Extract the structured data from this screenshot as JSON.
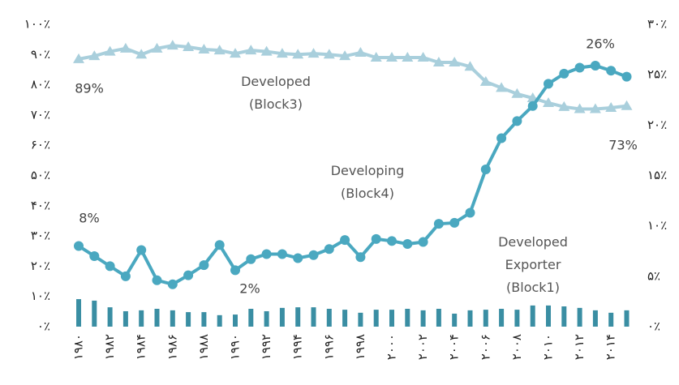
{
  "chart_data": {
    "type": "line",
    "categories": [
      "۱۹۸۰",
      null,
      "۱۹۸۲",
      null,
      "۱۹۸۴",
      null,
      "۱۹۸۶",
      null,
      "۱۹۸۸",
      null,
      "۱۹۹۰",
      null,
      "۱۹۹۲",
      null,
      "۱۹۹۴",
      null,
      "۱۹۹۶",
      null,
      "۱۹۹۸",
      null,
      "۲۰۰۰",
      null,
      "۲۰۰۲",
      null,
      "۲۰۰۴",
      null,
      "۲۰۰۶",
      null,
      "۲۰۰۸",
      null,
      "۲۰۱۰",
      null,
      "۲۰۱۲",
      null,
      "۲۰۱۴",
      null
    ],
    "series": [
      {
        "name": "Developed (Block3)",
        "color": "#a9cfdc",
        "marker": "triangle",
        "values": [
          88.5,
          89.5,
          91,
          92,
          90,
          92,
          93,
          92.5,
          91.7,
          91.4,
          90.3,
          91.4,
          91,
          90.3,
          90,
          90.3,
          90,
          89.5,
          90.6,
          89,
          89,
          89,
          89,
          87.4,
          87.4,
          86,
          81,
          79,
          77,
          75.6,
          74,
          72.7,
          72,
          72,
          72.4,
          73
        ]
      },
      {
        "name": "Developing (Block4)",
        "color": "#4aa8c0",
        "marker": "circle",
        "axis": "y2",
        "values": [
          8,
          7,
          6,
          5,
          7.6,
          4.6,
          4.2,
          5.1,
          6.1,
          8.1,
          5.6,
          6.7,
          7.2,
          7.2,
          6.8,
          7.1,
          7.7,
          8.6,
          6.9,
          8.7,
          8.5,
          8.2,
          8.4,
          10.2,
          10.3,
          11.3,
          15.6,
          18.7,
          20.4,
          21.9,
          24.1,
          25.1,
          25.7,
          25.9,
          25.4,
          24.8
        ]
      },
      {
        "name": "Developed Exporter (Block1)",
        "color": "#3a8ea3",
        "marker": "bar",
        "values": [
          9.1,
          8.6,
          6.4,
          5.1,
          5.4,
          5.9,
          5.4,
          4.8,
          4.8,
          3.8,
          4,
          5.9,
          5.1,
          6.2,
          6.4,
          6.4,
          5.9,
          5.6,
          4.6,
          5.6,
          5.6,
          5.9,
          5.4,
          5.9,
          4.3,
          5.4,
          5.6,
          5.9,
          5.6,
          7,
          7,
          6.7,
          6.2,
          5.4,
          4.6,
          5.4
        ]
      }
    ],
    "annotations": [
      "89%",
      "73%",
      "26%",
      "8%",
      "2%"
    ],
    "ylim": [
      0,
      100
    ],
    "yticks": [
      {
        "value": 0,
        "label": "۰٪"
      },
      {
        "value": 10,
        "label": "۱۰٪"
      },
      {
        "value": 20,
        "label": "۲۰٪"
      },
      {
        "value": 30,
        "label": "۳۰٪"
      },
      {
        "value": 40,
        "label": "۴۰٪"
      },
      {
        "value": 50,
        "label": "۵۰٪"
      },
      {
        "value": 60,
        "label": "۶۰٪"
      },
      {
        "value": 70,
        "label": "۷۰٪"
      },
      {
        "value": 80,
        "label": "۸۰٪"
      },
      {
        "value": 90,
        "label": "۹۰٪"
      },
      {
        "value": 100,
        "label": "۱۰۰٪"
      }
    ],
    "y2lim": [
      0,
      30
    ],
    "y2ticks": [
      {
        "value": 0,
        "label": "۰٪"
      },
      {
        "value": 5,
        "label": "۵٪"
      },
      {
        "value": 10,
        "label": "۱۰٪"
      },
      {
        "value": 15,
        "label": "۱۵٪"
      },
      {
        "value": 20,
        "label": "۲۰٪"
      },
      {
        "value": 25,
        "label": "۲۵٪"
      },
      {
        "value": 30,
        "label": "۳۰٪"
      }
    ]
  }
}
